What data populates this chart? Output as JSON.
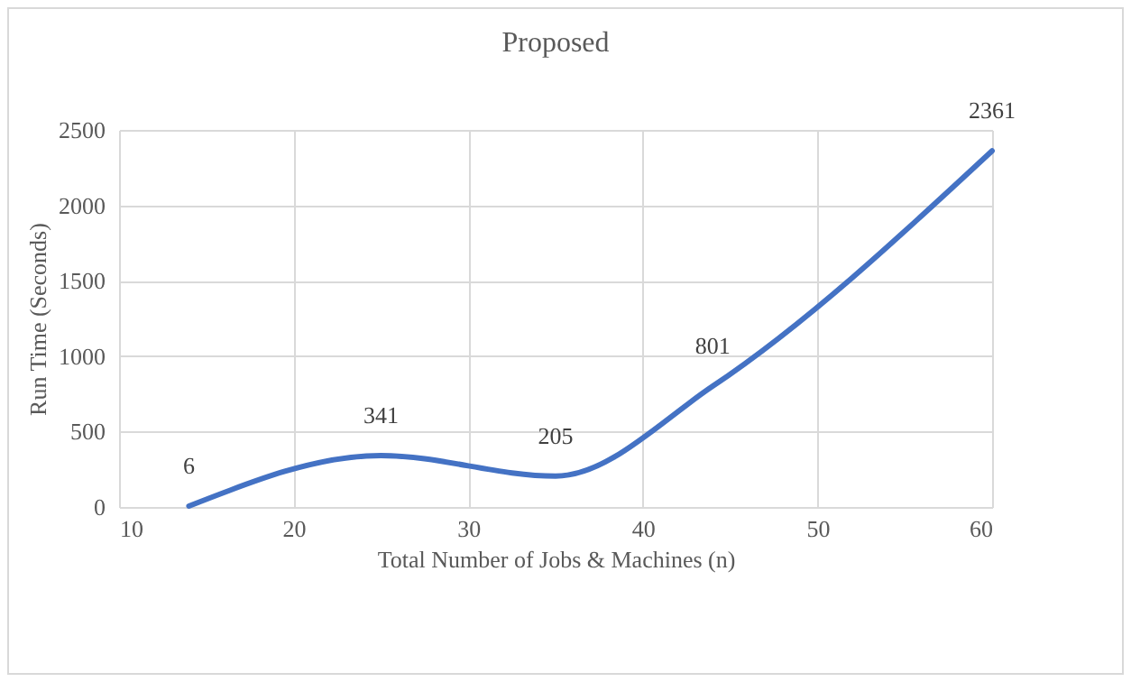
{
  "chart_data": {
    "type": "line",
    "title": "Proposed",
    "xlabel": "Total Number of Jobs & Machines (n)",
    "ylabel": "Run Time (Seconds)",
    "x": [
      14,
      25,
      35,
      44,
      60
    ],
    "series": [
      {
        "color": "#4472c4",
        "values": [
          6,
          341,
          205,
          801,
          2361
        ]
      }
    ],
    "xlim": [
      10,
      60
    ],
    "xticks": [
      10,
      20,
      30,
      40,
      50,
      60
    ],
    "ylim": [
      0,
      2500
    ],
    "yticks": [
      0,
      500,
      1000,
      1500,
      2000,
      2500
    ],
    "grid": true,
    "data_labels": true,
    "legend": false,
    "marker": "none",
    "line_style": "solid"
  }
}
